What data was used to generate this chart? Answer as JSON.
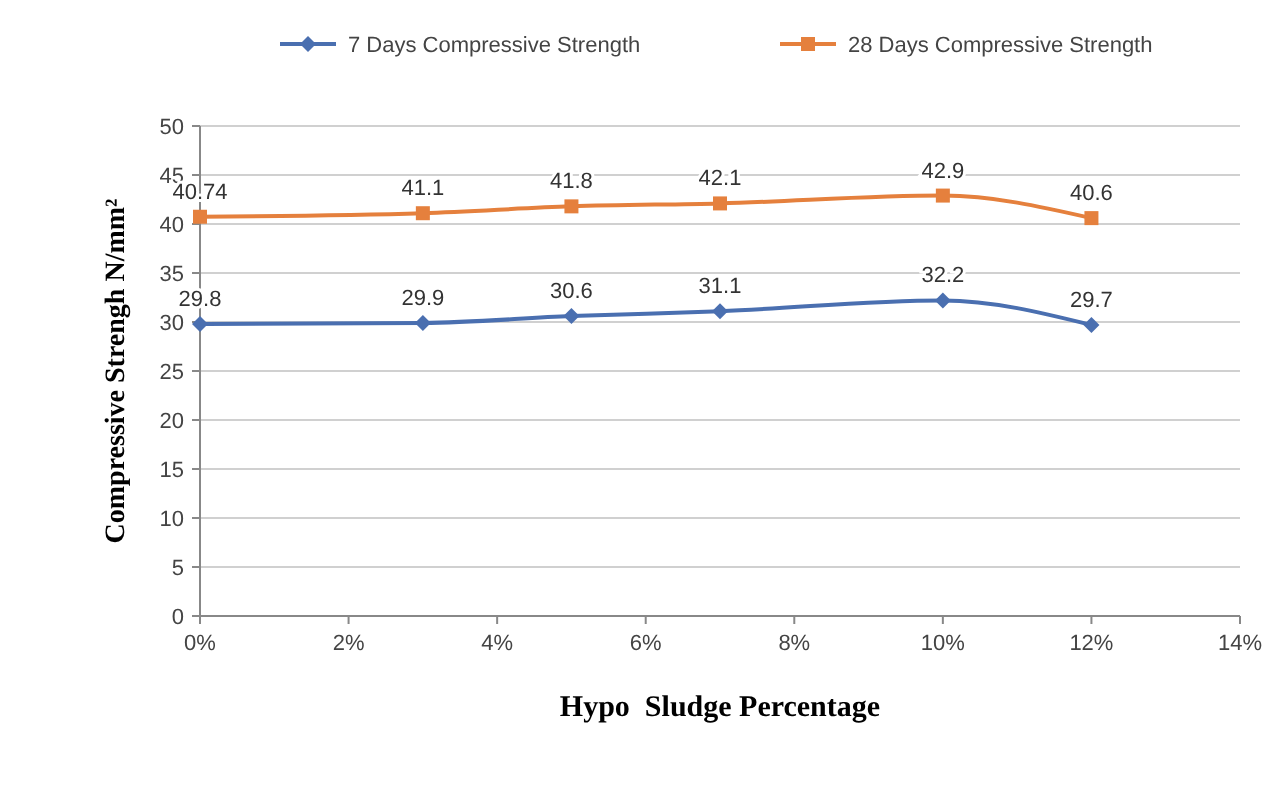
{
  "chart_data": {
    "type": "line",
    "xlabel": "Hypo  Sludge Percentage",
    "ylabel": "Compressive Strengh N/mm²",
    "x": [
      0,
      3,
      5,
      7,
      10,
      12
    ],
    "series": [
      {
        "name": "7 Days Compressive Strength",
        "color": "#4a6fb0",
        "marker": "diamond",
        "values": [
          29.8,
          29.9,
          30.6,
          31.1,
          32.2,
          29.7
        ]
      },
      {
        "name": "28 Days Compressive Strength",
        "color": "#e5803d",
        "marker": "square",
        "values": [
          40.74,
          41.1,
          41.8,
          42.1,
          42.9,
          40.6
        ]
      }
    ],
    "xlim": [
      0,
      14
    ],
    "xticks": [
      {
        "value": 0,
        "label": "0%"
      },
      {
        "value": 2,
        "label": "2%"
      },
      {
        "value": 4,
        "label": "4%"
      },
      {
        "value": 6,
        "label": "6%"
      },
      {
        "value": 8,
        "label": "8%"
      },
      {
        "value": 10,
        "label": "10%"
      },
      {
        "value": 12,
        "label": "12%"
      },
      {
        "value": 14,
        "label": "14%"
      }
    ],
    "ylim": [
      0,
      50
    ],
    "yticks": [
      0,
      5,
      10,
      15,
      20,
      25,
      30,
      35,
      40,
      45,
      50
    ],
    "grid": "y",
    "legend": "top",
    "data_labels": true,
    "line_style": "solid"
  }
}
